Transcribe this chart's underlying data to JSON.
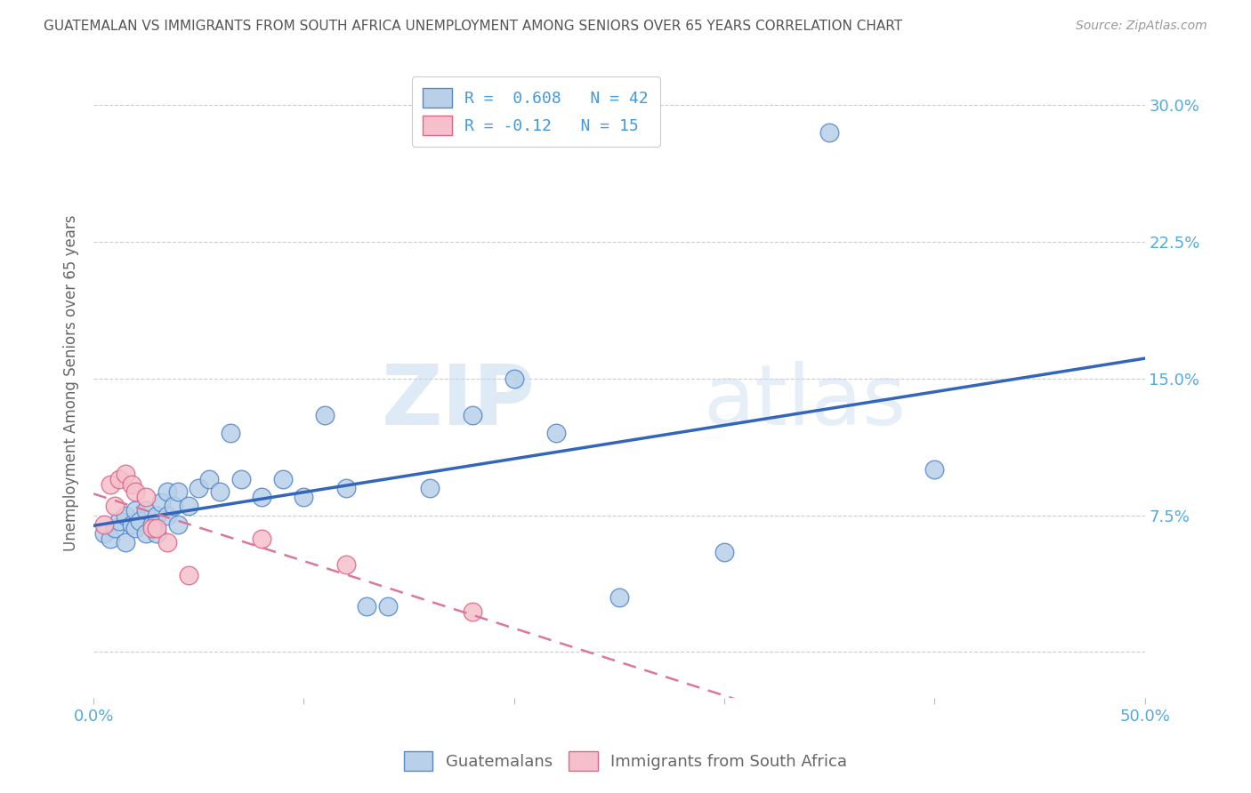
{
  "title": "GUATEMALAN VS IMMIGRANTS FROM SOUTH AFRICA UNEMPLOYMENT AMONG SENIORS OVER 65 YEARS CORRELATION CHART",
  "source": "Source: ZipAtlas.com",
  "ylabel": "Unemployment Among Seniors over 65 years",
  "xlim": [
    0.0,
    0.5
  ],
  "ylim": [
    -0.025,
    0.32
  ],
  "yticks": [
    0.0,
    0.075,
    0.15,
    0.225,
    0.3
  ],
  "ytick_labels_right": [
    "",
    "7.5%",
    "15.0%",
    "22.5%",
    "30.0%"
  ],
  "xticks": [
    0.0,
    0.1,
    0.2,
    0.3,
    0.4,
    0.5
  ],
  "xtick_labels": [
    "0.0%",
    "",
    "",
    "",
    "",
    "50.0%"
  ],
  "blue_R": 0.608,
  "blue_N": 42,
  "pink_R": -0.12,
  "pink_N": 15,
  "blue_scatter_color": "#b8d0e8",
  "pink_scatter_color": "#f5c0cc",
  "blue_edge_color": "#5588cc",
  "pink_edge_color": "#dd6688",
  "blue_line_color": "#3366bb",
  "pink_line_color": "#dd7799",
  "watermark_zip": "ZIP",
  "watermark_atlas": "atlas",
  "guatemalan_x": [
    0.005,
    0.008,
    0.01,
    0.012,
    0.015,
    0.015,
    0.018,
    0.02,
    0.02,
    0.022,
    0.025,
    0.025,
    0.028,
    0.03,
    0.03,
    0.032,
    0.035,
    0.035,
    0.038,
    0.04,
    0.04,
    0.045,
    0.05,
    0.055,
    0.06,
    0.065,
    0.07,
    0.08,
    0.09,
    0.1,
    0.11,
    0.12,
    0.13,
    0.14,
    0.16,
    0.18,
    0.2,
    0.22,
    0.25,
    0.3,
    0.35,
    0.4
  ],
  "guatemalan_y": [
    0.065,
    0.062,
    0.068,
    0.072,
    0.06,
    0.075,
    0.07,
    0.068,
    0.078,
    0.072,
    0.065,
    0.078,
    0.07,
    0.065,
    0.075,
    0.082,
    0.075,
    0.088,
    0.08,
    0.07,
    0.088,
    0.08,
    0.09,
    0.095,
    0.088,
    0.12,
    0.095,
    0.085,
    0.095,
    0.085,
    0.13,
    0.09,
    0.025,
    0.025,
    0.09,
    0.13,
    0.15,
    0.12,
    0.03,
    0.055,
    0.285,
    0.1
  ],
  "southafrica_x": [
    0.005,
    0.008,
    0.01,
    0.012,
    0.015,
    0.018,
    0.02,
    0.025,
    0.028,
    0.03,
    0.035,
    0.045,
    0.08,
    0.12,
    0.18
  ],
  "southafrica_y": [
    0.07,
    0.092,
    0.08,
    0.095,
    0.098,
    0.092,
    0.088,
    0.085,
    0.068,
    0.068,
    0.06,
    0.042,
    0.062,
    0.048,
    0.022
  ],
  "background_color": "#ffffff",
  "grid_color": "#cccccc",
  "title_color": "#555555",
  "axis_label_color": "#666666",
  "tick_color": "#55aadd",
  "legend_label_color": "#4499dd"
}
